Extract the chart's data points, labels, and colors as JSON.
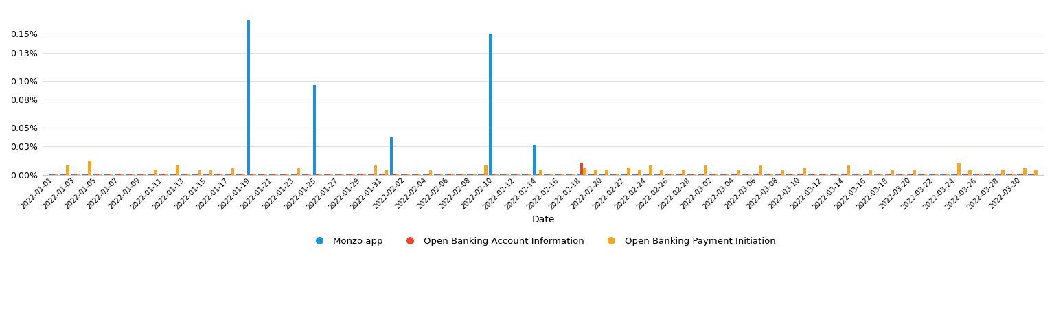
{
  "title": "",
  "xlabel": "Date",
  "ylabel": "",
  "background_color": "#ffffff",
  "grid_color": "#e0e0e0",
  "bar_width": 0.28,
  "legend_labels": [
    "Monzo app",
    "Open Banking Account Information",
    "Open Banking Payment Initiation"
  ],
  "colors": [
    "#1e90d8",
    "#e8472a",
    "#f5a623"
  ],
  "dates": [
    "2022-01-01",
    "2022-01-02",
    "2022-01-03",
    "2022-01-04",
    "2022-01-05",
    "2022-01-06",
    "2022-01-07",
    "2022-01-08",
    "2022-01-09",
    "2022-01-10",
    "2022-01-11",
    "2022-01-12",
    "2022-01-13",
    "2022-01-14",
    "2022-01-15",
    "2022-01-16",
    "2022-01-17",
    "2022-01-18",
    "2022-01-19",
    "2022-01-20",
    "2022-01-21",
    "2022-01-22",
    "2022-01-23",
    "2022-01-24",
    "2022-01-25",
    "2022-01-26",
    "2022-01-27",
    "2022-01-28",
    "2022-01-29",
    "2022-01-30",
    "2022-01-31",
    "2022-02-01",
    "2022-02-02",
    "2022-02-03",
    "2022-02-04",
    "2022-02-05",
    "2022-02-06",
    "2022-02-07",
    "2022-02-08",
    "2022-02-09",
    "2022-02-10",
    "2022-02-11",
    "2022-02-12",
    "2022-02-13",
    "2022-02-14",
    "2022-02-15",
    "2022-02-16",
    "2022-02-17",
    "2022-02-18",
    "2022-02-19",
    "2022-02-20",
    "2022-02-21",
    "2022-02-22",
    "2022-02-23",
    "2022-02-24",
    "2022-02-25",
    "2022-02-26",
    "2022-02-27",
    "2022-02-28",
    "2022-03-01",
    "2022-03-02",
    "2022-03-03",
    "2022-03-04",
    "2022-03-05",
    "2022-03-06",
    "2022-03-07",
    "2022-03-08",
    "2022-03-09",
    "2022-03-10",
    "2022-03-11",
    "2022-03-12",
    "2022-03-13",
    "2022-03-14",
    "2022-03-15",
    "2022-03-16",
    "2022-03-17",
    "2022-03-18",
    "2022-03-19",
    "2022-03-20",
    "2022-03-21",
    "2022-03-22",
    "2022-03-23",
    "2022-03-24",
    "2022-03-25",
    "2022-03-26",
    "2022-03-27",
    "2022-03-28",
    "2022-03-29",
    "2022-03-30",
    "2022-03-31"
  ],
  "monzo_app": [
    5e-06,
    5e-06,
    5e-06,
    5e-06,
    5e-06,
    5e-06,
    5e-06,
    5e-06,
    5e-06,
    5e-06,
    5e-06,
    5e-06,
    5e-06,
    5e-06,
    5e-06,
    5e-06,
    5e-06,
    5e-06,
    0.00165,
    5e-06,
    5e-06,
    5e-06,
    5e-06,
    5e-06,
    0.00095,
    5e-06,
    5e-06,
    5e-06,
    5e-06,
    5e-06,
    5e-06,
    0.0004,
    5e-06,
    5e-06,
    5e-06,
    5e-06,
    5e-06,
    5e-06,
    5e-06,
    5e-06,
    0.0015,
    5e-06,
    5e-06,
    5e-06,
    0.00032,
    5e-06,
    5e-06,
    5e-06,
    5e-06,
    5e-06,
    5e-06,
    5e-06,
    5e-06,
    5e-06,
    5e-06,
    5e-06,
    5e-06,
    5e-06,
    5e-06,
    5e-06,
    5e-06,
    5e-06,
    5e-06,
    5e-06,
    5e-06,
    5e-06,
    5e-06,
    5e-06,
    5e-06,
    5e-06,
    5e-06,
    5e-06,
    5e-06,
    5e-06,
    5e-06,
    5e-06,
    5e-06,
    5e-06,
    5e-06,
    5e-06,
    5e-06,
    5e-06,
    5e-06,
    5e-06,
    5e-06,
    5e-06,
    5e-06,
    5e-06,
    5e-06,
    5e-06
  ],
  "ob_account_info": [
    5e-06,
    5e-06,
    8e-06,
    5e-06,
    8e-06,
    5e-06,
    8e-06,
    5e-06,
    5e-06,
    5e-06,
    8e-06,
    5e-06,
    5e-06,
    5e-06,
    5e-06,
    8e-06,
    5e-06,
    5e-06,
    8e-06,
    5e-06,
    5e-06,
    5e-06,
    5e-06,
    5e-06,
    5e-06,
    5e-06,
    5e-06,
    5e-06,
    8e-06,
    5e-06,
    8e-06,
    5e-06,
    5e-06,
    5e-06,
    5e-06,
    5e-06,
    8e-06,
    5e-06,
    5e-06,
    5e-06,
    5e-06,
    5e-06,
    5e-06,
    5e-06,
    5e-06,
    5e-06,
    5e-06,
    5e-06,
    0.00013,
    5e-06,
    5e-06,
    5e-06,
    5e-06,
    5e-06,
    5e-06,
    5e-06,
    5e-06,
    5e-06,
    5e-06,
    5e-06,
    5e-06,
    5e-06,
    5e-06,
    5e-06,
    8e-06,
    5e-06,
    5e-06,
    5e-06,
    5e-06,
    5e-06,
    5e-06,
    5e-06,
    5e-06,
    5e-06,
    5e-06,
    5e-06,
    5e-06,
    5e-06,
    5e-06,
    5e-06,
    5e-06,
    5e-06,
    5e-06,
    8e-06,
    8e-06,
    8e-06,
    5e-06,
    8e-06,
    8e-06,
    8e-06
  ],
  "ob_payment_init": [
    5e-06,
    0.0001,
    5e-06,
    0.00015,
    5e-06,
    5e-06,
    5e-06,
    5e-06,
    5e-06,
    5e-05,
    5e-06,
    0.0001,
    5e-06,
    5e-05,
    5e-05,
    5e-06,
    7e-05,
    5e-06,
    5e-06,
    5e-06,
    5e-06,
    5e-06,
    7e-05,
    5e-06,
    5e-06,
    5e-06,
    5e-06,
    5e-06,
    5e-06,
    0.0001,
    5e-05,
    5e-06,
    5e-06,
    5e-06,
    5e-05,
    5e-06,
    5e-06,
    5e-06,
    5e-06,
    0.0001,
    5e-06,
    5e-06,
    5e-06,
    5e-06,
    5e-05,
    5e-06,
    5e-06,
    5e-06,
    7e-05,
    5e-05,
    5e-05,
    5e-06,
    8e-05,
    5e-05,
    0.0001,
    5e-05,
    5e-06,
    5e-05,
    5e-06,
    0.0001,
    5e-06,
    5e-06,
    5e-05,
    5e-06,
    0.0001,
    5e-06,
    5e-05,
    5e-06,
    7e-05,
    5e-06,
    5e-06,
    5e-06,
    0.0001,
    5e-06,
    5e-05,
    5e-06,
    5e-05,
    5e-06,
    5e-05,
    5e-06,
    5e-06,
    5e-06,
    0.00012,
    5e-05,
    5e-06,
    5e-06,
    5e-05,
    5e-06,
    7e-05,
    5e-05
  ],
  "yticks": [
    0.0,
    0.0003,
    0.0005,
    0.0008,
    0.001,
    0.0013,
    0.0015
  ],
  "ytick_labels": [
    "0.00%",
    "0.03%",
    "0.05%",
    "0.08%",
    "0.10%",
    "0.13%",
    "0.15%"
  ],
  "ylim": [
    0,
    0.00175
  ]
}
